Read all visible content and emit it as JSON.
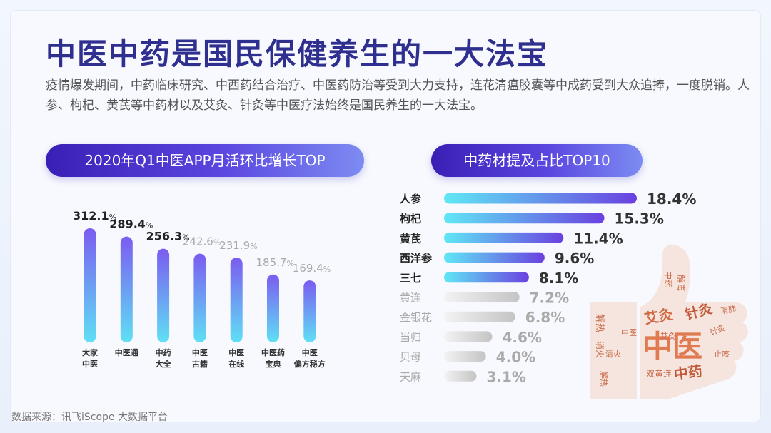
{
  "title": "中医中药是国民保健养生的一大法宝",
  "description": "疫情爆发期间，中药临床研究、中西药结合治疗、中医药防治等受到大力支持，连花清瘟胶囊等中成药受到大众追捧，一度脱销。人参、枸杞、黄芪等中药材以及艾灸、针灸等中医疗法始终是国民养生的一大法宝。",
  "source": "数据来源：讯飞iScope 大数据平台",
  "word_cloud": {
    "big_words": [
      "中医",
      "中药",
      "艾灸",
      "针灸"
    ],
    "small_words": [
      "解热",
      "消火",
      "清火",
      "中药",
      "解毒",
      "艾灸",
      "针灸",
      "双黄连",
      "中医",
      "解热",
      "清肺",
      "止咳"
    ]
  },
  "chart_data": [
    {
      "type": "bar",
      "title": "2020年Q1中医APP月活环比增长TOP",
      "categories": [
        [
          "大家",
          "中医"
        ],
        [
          "中医通"
        ],
        [
          "中药",
          "大全"
        ],
        [
          "中医",
          "古籍"
        ],
        [
          "中医",
          "在线"
        ],
        [
          "中医药",
          "宝典"
        ],
        [
          "中医",
          "偏方秘方"
        ]
      ],
      "values": [
        312.1,
        289.4,
        256.3,
        242.6,
        231.9,
        185.7,
        169.4
      ],
      "value_labels": [
        "312.1",
        "289.4",
        "256.3",
        "242.6",
        "231.9",
        "185.7",
        "169.4"
      ],
      "unit": "%",
      "highlight_count": 3,
      "colors": {
        "bar_top": "#7b5cf0",
        "bar_bottom": "#5fe0f5",
        "label_strong": "#222222",
        "label_weak": "#aaaaaa"
      }
    },
    {
      "type": "bar",
      "orientation": "horizontal",
      "title": "中药材提及占比TOP10",
      "categories": [
        "人参",
        "枸杞",
        "黄芪",
        "西洋参",
        "三七",
        "黄连",
        "金银花",
        "当归",
        "贝母",
        "天麻"
      ],
      "values": [
        18.4,
        15.3,
        11.4,
        9.6,
        8.1,
        7.2,
        6.8,
        4.6,
        4.0,
        3.1
      ],
      "value_labels": [
        "18.4%",
        "15.3%",
        "11.4%",
        "9.6%",
        "8.1%",
        "7.2%",
        "6.8%",
        "4.6%",
        "4.0%",
        "3.1%"
      ],
      "highlight_count": 5,
      "colors": {
        "strong_start": "#5fe8f5",
        "strong_end": "#6a40e0",
        "weak_start": "#f0f0f0",
        "weak_end": "#c4c4c4",
        "label_strong": "#333333",
        "label_weak": "#aaaaaa"
      }
    }
  ]
}
